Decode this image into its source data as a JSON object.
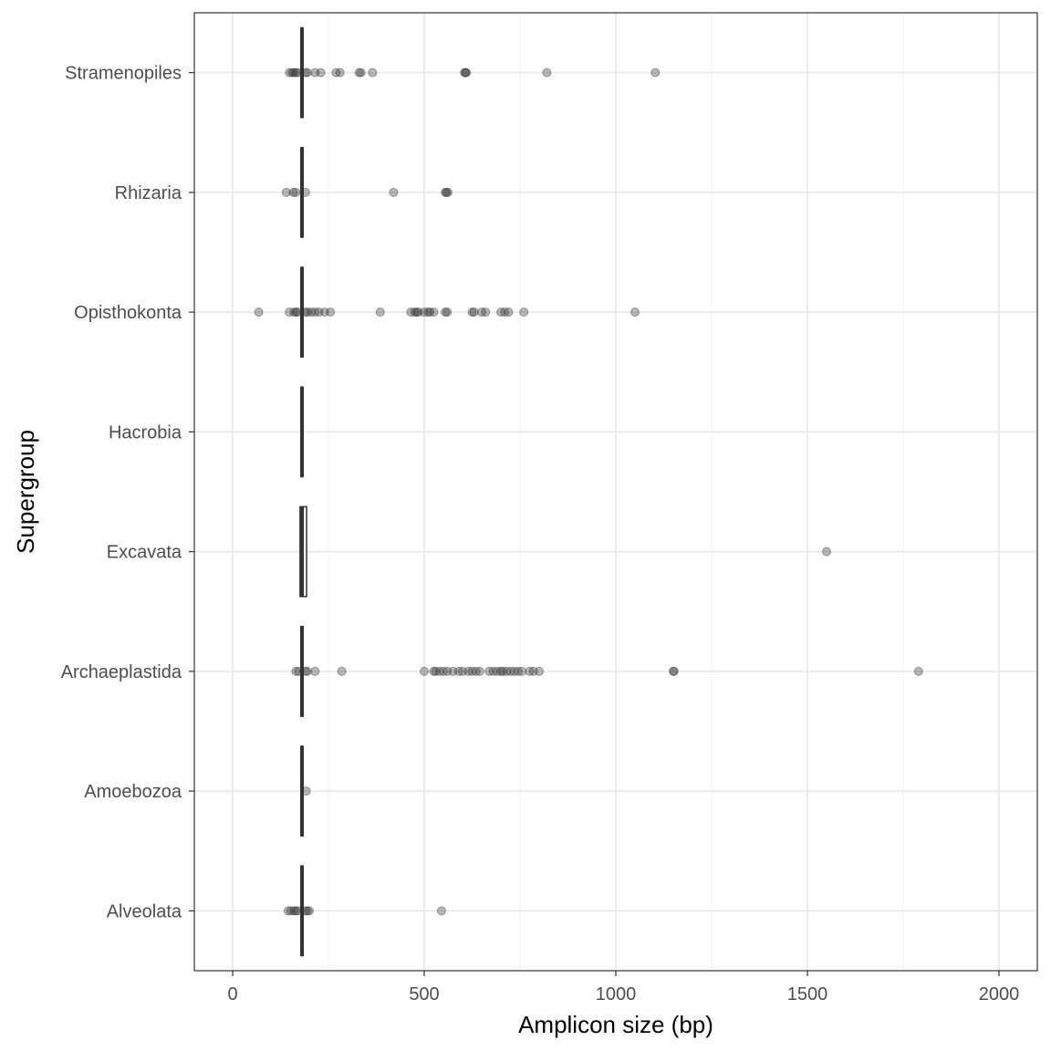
{
  "chart_data": {
    "type": "boxplot",
    "title": "",
    "xlabel": "Amplicon size (bp)",
    "ylabel": "Supergroup",
    "xlim": [
      -100,
      2100
    ],
    "xticks": [
      0,
      500,
      1000,
      1500,
      2000
    ],
    "xtick_labels": [
      "0",
      "500",
      "1000",
      "1500",
      "2000"
    ],
    "categories": [
      "Stramenopiles",
      "Rhizaria",
      "Opisthokonta",
      "Hacrobia",
      "Excavata",
      "Archaeplastida",
      "Amoebozoa",
      "Alveolata"
    ],
    "grid": true,
    "colors": {
      "box": "#333333",
      "points": "#333333",
      "grid": "#ebebeb"
    },
    "series": [
      {
        "name": "Stramenopiles",
        "q1": 179,
        "median": 181,
        "q3": 183,
        "whisker_low": 176,
        "whisker_high": 186,
        "outliers": [
          148,
          155,
          160,
          165,
          170,
          190,
          195,
          215,
          230,
          270,
          280,
          330,
          335,
          365,
          605,
          608,
          610,
          820,
          1103
        ]
      },
      {
        "name": "Rhizaria",
        "q1": 179,
        "median": 181,
        "q3": 183,
        "whisker_low": 177,
        "whisker_high": 185,
        "outliers": [
          140,
          158,
          165,
          190,
          420,
          555,
          558,
          562
        ]
      },
      {
        "name": "Opisthokonta",
        "q1": 179,
        "median": 181,
        "q3": 183,
        "whisker_low": 176,
        "whisker_high": 186,
        "outliers": [
          68,
          148,
          160,
          165,
          170,
          190,
          195,
          205,
          215,
          225,
          240,
          255,
          385,
          465,
          475,
          480,
          485,
          500,
          510,
          515,
          525,
          555,
          560,
          625,
          630,
          650,
          660,
          700,
          710,
          720,
          760,
          1050
        ]
      },
      {
        "name": "Hacrobia",
        "q1": 179,
        "median": 181,
        "q3": 183,
        "whisker_low": 178,
        "whisker_high": 184,
        "outliers": []
      },
      {
        "name": "Excavata",
        "q1": 176,
        "median": 181,
        "q3": 193,
        "whisker_low": 174,
        "whisker_high": 195,
        "outliers": [
          1550
        ]
      },
      {
        "name": "Archaeplastida",
        "q1": 178,
        "median": 181,
        "q3": 184,
        "whisker_low": 175,
        "whisker_high": 187,
        "outliers": [
          165,
          172,
          190,
          195,
          215,
          285,
          500,
          525,
          530,
          540,
          550,
          560,
          575,
          590,
          600,
          615,
          625,
          635,
          645,
          670,
          680,
          690,
          700,
          705,
          715,
          725,
          735,
          745,
          755,
          775,
          785,
          800,
          1150,
          1152,
          1790
        ]
      },
      {
        "name": "Amoebozoa",
        "q1": 179,
        "median": 181,
        "q3": 183,
        "whisker_low": 178,
        "whisker_high": 184,
        "outliers": [
          192
        ]
      },
      {
        "name": "Alveolata",
        "q1": 179,
        "median": 181,
        "q3": 184,
        "whisker_low": 176,
        "whisker_high": 187,
        "outliers": [
          145,
          152,
          160,
          165,
          170,
          190,
          195,
          200,
          545
        ]
      }
    ]
  }
}
